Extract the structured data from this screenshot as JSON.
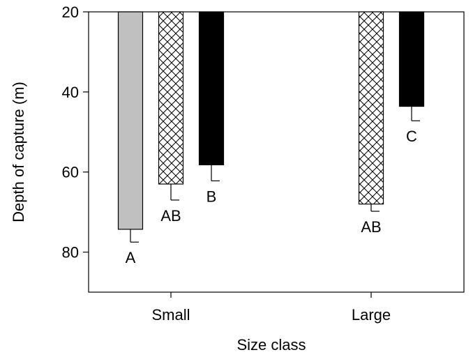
{
  "chart_data": {
    "type": "bar",
    "orientation": "vertical",
    "y_axis_inverted": true,
    "xlabel": "Size class",
    "ylabel": "Depth of capture (m)",
    "categories": [
      "Small",
      "Large"
    ],
    "yticks": [
      20,
      40,
      60,
      80
    ],
    "ylim": [
      20,
      90
    ],
    "grid": false,
    "legend": "none",
    "series": [
      {
        "fill": "gray",
        "color": "#c0c0c0",
        "values": [
          74.3,
          null
        ],
        "error": [
          3.2,
          null
        ],
        "labels": [
          "A",
          null
        ]
      },
      {
        "fill": "crosshatch",
        "color": "#000000",
        "values": [
          63.0,
          68.0
        ],
        "error": [
          4.0,
          1.8
        ],
        "labels": [
          "AB",
          "AB"
        ]
      },
      {
        "fill": "black",
        "color": "#000000",
        "values": [
          58.2,
          43.6
        ],
        "error": [
          4.0,
          3.6
        ],
        "labels": [
          "B",
          "C"
        ]
      }
    ]
  }
}
